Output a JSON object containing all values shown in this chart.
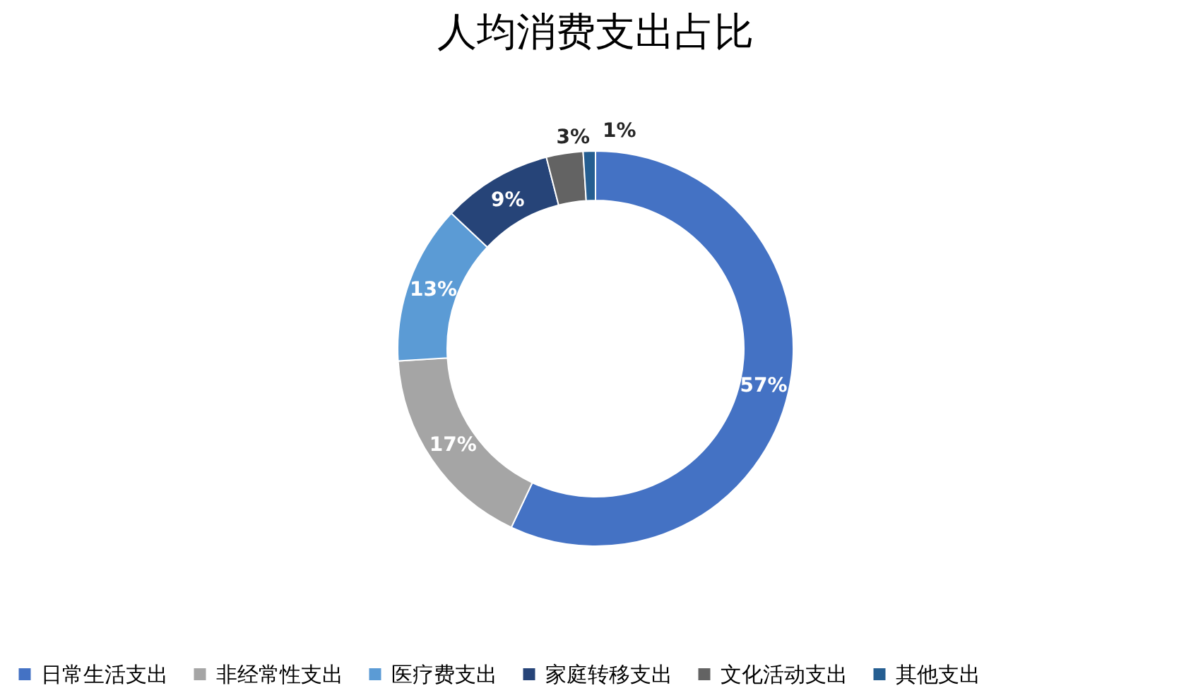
{
  "chart_data": {
    "type": "donut",
    "title": "人均消费支出占比",
    "categories": [
      "日常生活支出",
      "非经常性支出",
      "医疗费支出",
      "家庭转移支出",
      "文化活动支出",
      "其他支出"
    ],
    "values": [
      57,
      17,
      13,
      9,
      3,
      1
    ],
    "colors": [
      "#4472c4",
      "#a5a5a5",
      "#5b9bd5",
      "#264478",
      "#636363",
      "#255e91"
    ],
    "value_labels": [
      "57%",
      "17%",
      "13%",
      "9%",
      "3%",
      "1%"
    ],
    "legend": "bottom"
  }
}
